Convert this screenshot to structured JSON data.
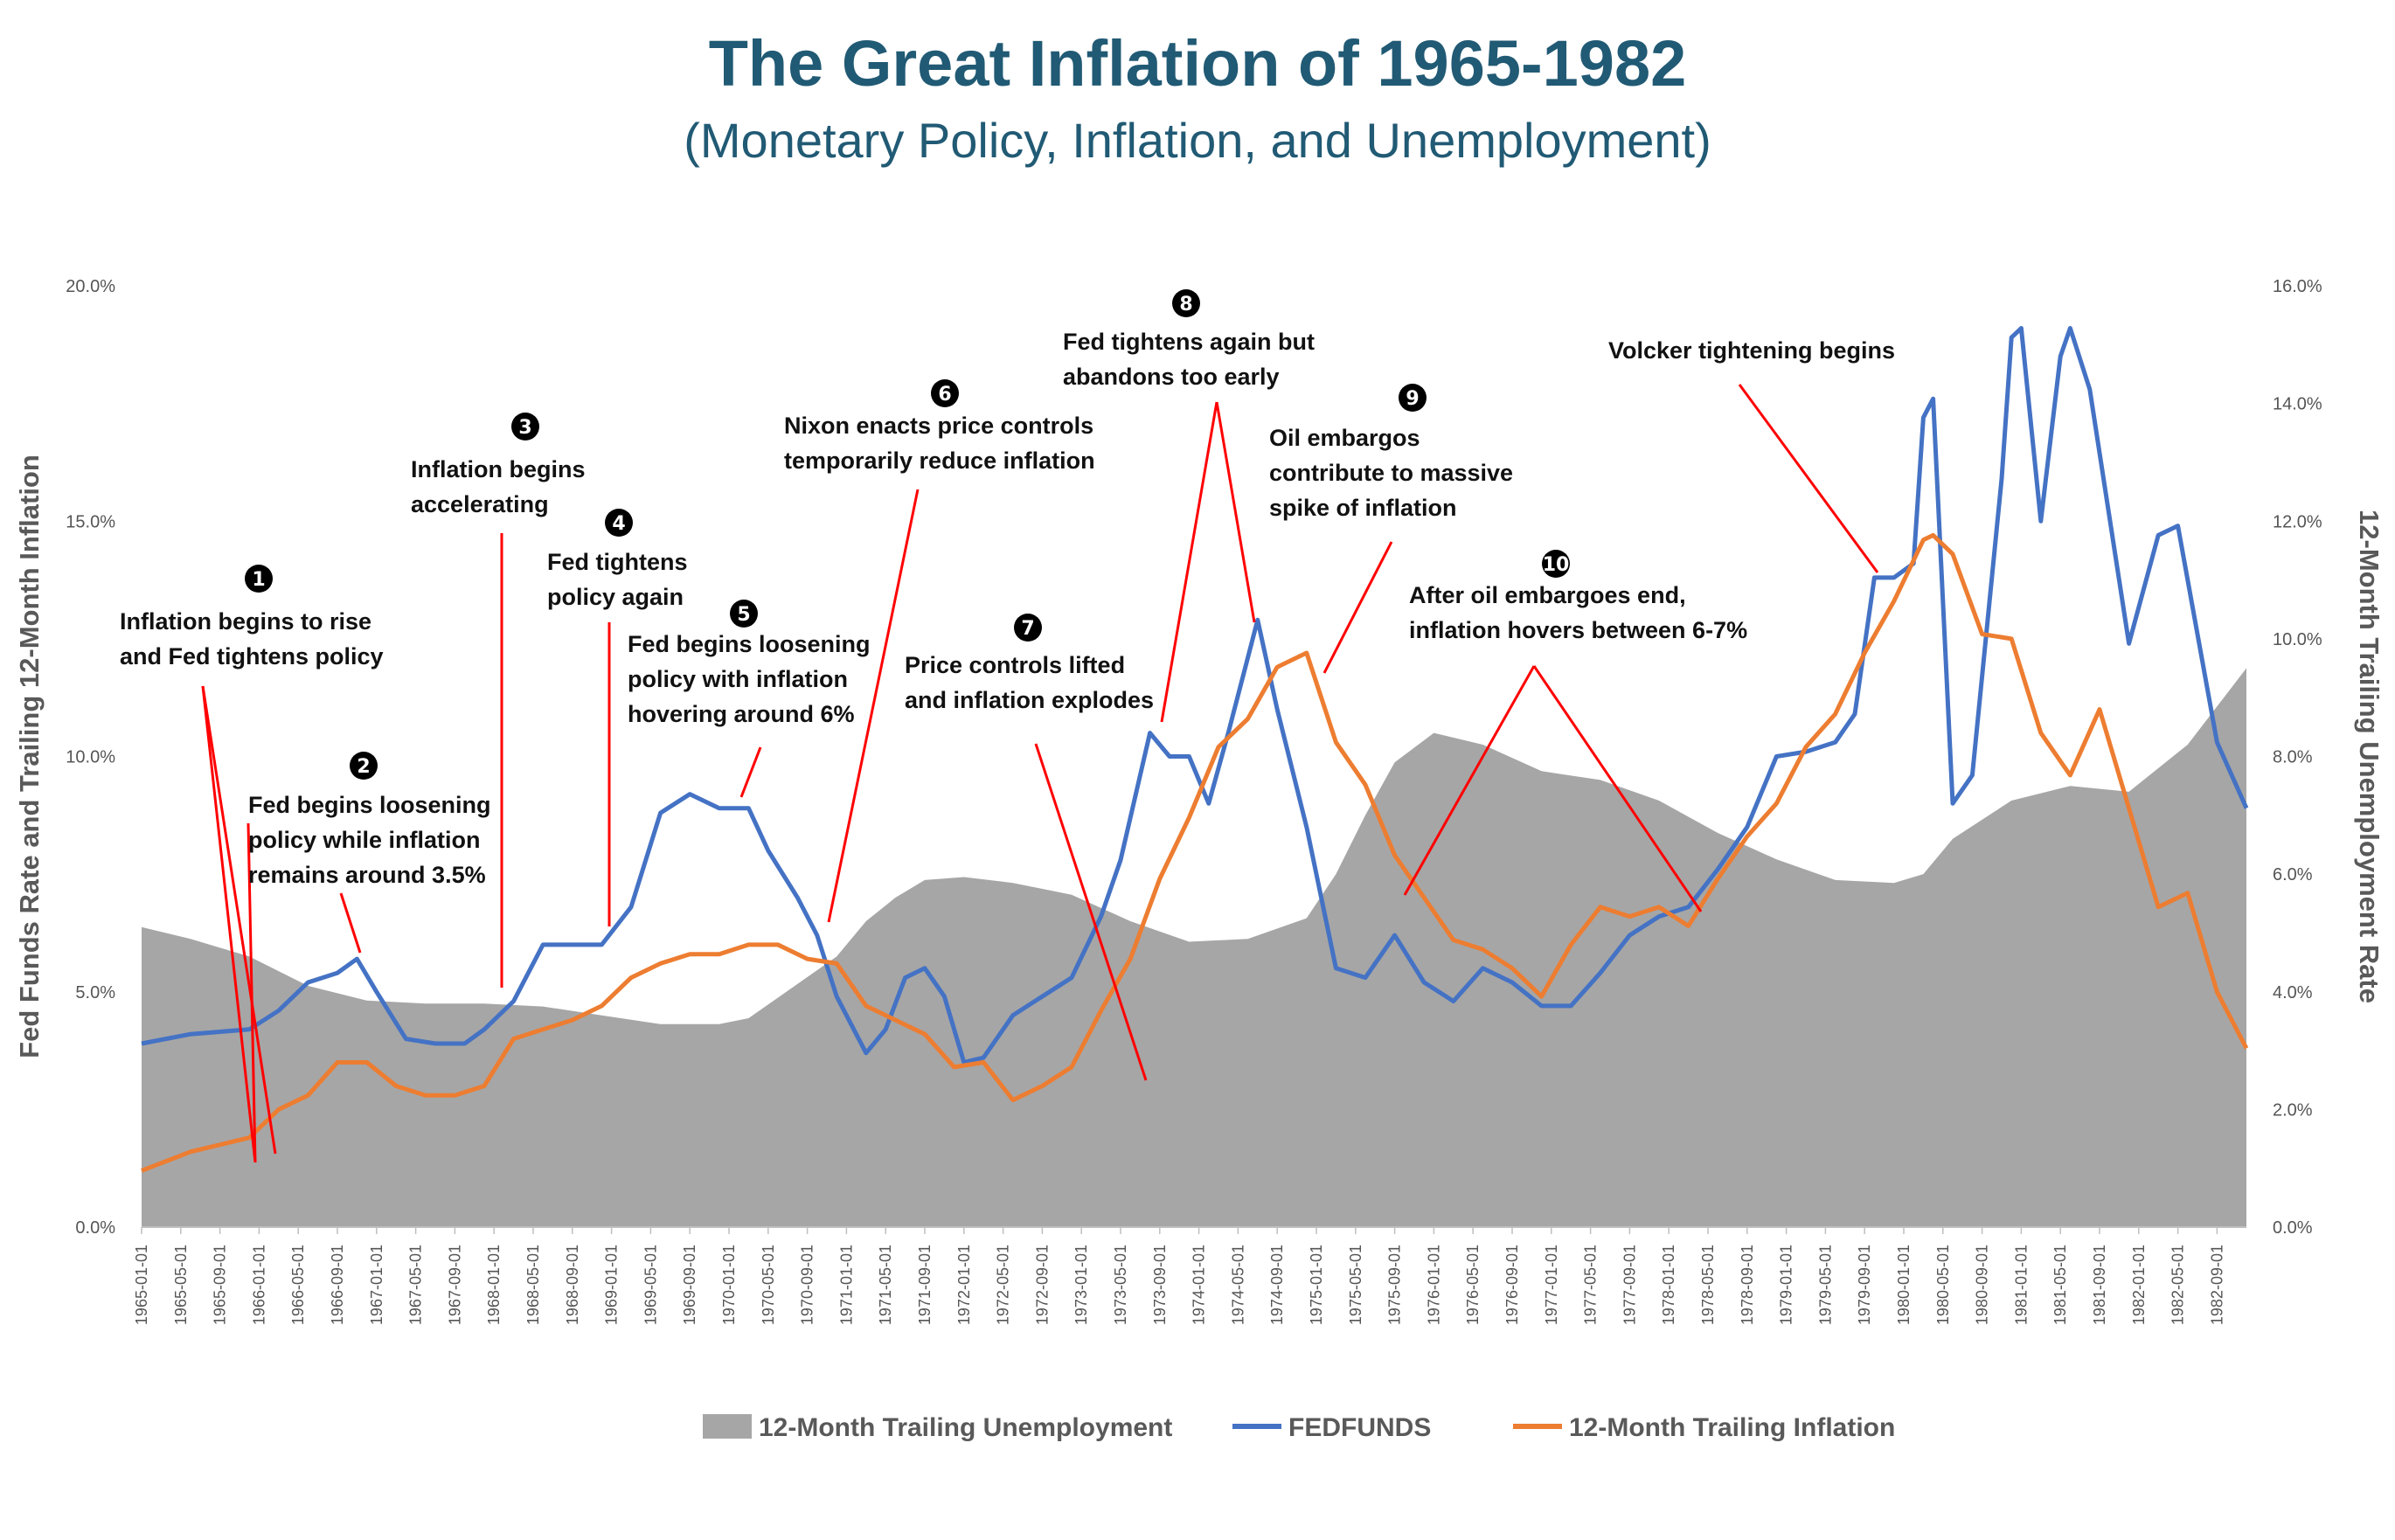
{
  "title": "The Great Inflation of 1965-1982",
  "subtitle": "(Monetary Policy, Inflation, and Unemployment)",
  "colors": {
    "title": "#215a74",
    "unemployment": "#a6a6a6",
    "fedfunds": "#4472c4",
    "inflation": "#ed7d31",
    "annotation_line": "#ff0000"
  },
  "chart_data": {
    "type": "line",
    "ylabel": "Fed Funds Rate and Trailing 12-Month Inflation",
    "y2label": "12-Month Trailing Unemployment Rate",
    "ylim": [
      0,
      20
    ],
    "y2lim": [
      0,
      16
    ],
    "yticks": [
      "0.0%",
      "5.0%",
      "10.0%",
      "15.0%",
      "20.0%"
    ],
    "y2ticks": [
      "0.0%",
      "2.0%",
      "4.0%",
      "6.0%",
      "8.0%",
      "10.0%",
      "12.0%",
      "14.0%",
      "16.0%"
    ],
    "xticks": [
      "1965-01-01",
      "1965-05-01",
      "1965-09-01",
      "1966-01-01",
      "1966-05-01",
      "1966-09-01",
      "1967-01-01",
      "1967-05-01",
      "1967-09-01",
      "1968-01-01",
      "1968-05-01",
      "1968-09-01",
      "1969-01-01",
      "1969-05-01",
      "1969-09-01",
      "1970-01-01",
      "1970-05-01",
      "1970-09-01",
      "1971-01-01",
      "1971-05-01",
      "1971-09-01",
      "1972-01-01",
      "1972-05-01",
      "1972-09-01",
      "1973-01-01",
      "1973-05-01",
      "1973-09-01",
      "1974-01-01",
      "1974-05-01",
      "1974-09-01",
      "1975-01-01",
      "1975-05-01",
      "1975-09-01",
      "1976-01-01",
      "1976-05-01",
      "1976-09-01",
      "1977-01-01",
      "1977-05-01",
      "1977-09-01",
      "1978-01-01",
      "1978-05-01",
      "1978-09-01",
      "1979-01-01",
      "1979-05-01",
      "1979-09-01",
      "1980-01-01",
      "1980-05-01",
      "1980-09-01",
      "1981-01-01",
      "1981-05-01",
      "1981-09-01",
      "1982-01-01",
      "1982-05-01",
      "1982-09-01"
    ],
    "x_start": "1965-01",
    "x_end": "1982-12",
    "legend_position": "bottom",
    "grid": false,
    "series": [
      {
        "name": "12-Month Trailing Unemployment",
        "kind": "area",
        "axis": "right",
        "points": [
          [
            "1965-01",
            5.1
          ],
          [
            "1965-06",
            4.9
          ],
          [
            "1965-12",
            4.6
          ],
          [
            "1966-06",
            4.1
          ],
          [
            "1966-12",
            3.85
          ],
          [
            "1967-06",
            3.8
          ],
          [
            "1967-12",
            3.8
          ],
          [
            "1968-06",
            3.75
          ],
          [
            "1968-12",
            3.6
          ],
          [
            "1969-06",
            3.45
          ],
          [
            "1969-12",
            3.45
          ],
          [
            "1970-03",
            3.55
          ],
          [
            "1970-06",
            3.9
          ],
          [
            "1970-12",
            4.6
          ],
          [
            "1971-03",
            5.2
          ],
          [
            "1971-06",
            5.6
          ],
          [
            "1971-09",
            5.9
          ],
          [
            "1972-01",
            5.95
          ],
          [
            "1972-06",
            5.85
          ],
          [
            "1972-12",
            5.65
          ],
          [
            "1973-06",
            5.2
          ],
          [
            "1973-12",
            4.85
          ],
          [
            "1974-06",
            4.9
          ],
          [
            "1974-12",
            5.25
          ],
          [
            "1975-03",
            6.0
          ],
          [
            "1975-06",
            7.0
          ],
          [
            "1975-09",
            7.9
          ],
          [
            "1976-01",
            8.4
          ],
          [
            "1976-06",
            8.2
          ],
          [
            "1976-12",
            7.75
          ],
          [
            "1977-06",
            7.6
          ],
          [
            "1977-12",
            7.25
          ],
          [
            "1978-06",
            6.7
          ],
          [
            "1978-12",
            6.25
          ],
          [
            "1979-06",
            5.9
          ],
          [
            "1979-12",
            5.85
          ],
          [
            "1980-03",
            6.0
          ],
          [
            "1980-06",
            6.6
          ],
          [
            "1980-12",
            7.25
          ],
          [
            "1981-06",
            7.5
          ],
          [
            "1981-12",
            7.4
          ],
          [
            "1982-06",
            8.2
          ],
          [
            "1982-12",
            9.5
          ]
        ]
      },
      {
        "name": "FEDFUNDS",
        "kind": "line",
        "axis": "left",
        "points": [
          [
            "1965-01",
            3.9
          ],
          [
            "1965-06",
            4.1
          ],
          [
            "1965-12",
            4.2
          ],
          [
            "1966-03",
            4.6
          ],
          [
            "1966-06",
            5.2
          ],
          [
            "1966-09",
            5.4
          ],
          [
            "1966-11",
            5.7
          ],
          [
            "1967-01",
            5.0
          ],
          [
            "1967-04",
            4.0
          ],
          [
            "1967-07",
            3.9
          ],
          [
            "1967-10",
            3.9
          ],
          [
            "1967-12",
            4.2
          ],
          [
            "1968-03",
            4.8
          ],
          [
            "1968-06",
            6.0
          ],
          [
            "1968-09",
            6.0
          ],
          [
            "1968-12",
            6.0
          ],
          [
            "1969-03",
            6.8
          ],
          [
            "1969-06",
            8.8
          ],
          [
            "1969-09",
            9.2
          ],
          [
            "1969-12",
            8.9
          ],
          [
            "1970-03",
            8.9
          ],
          [
            "1970-05",
            8.0
          ],
          [
            "1970-08",
            7.0
          ],
          [
            "1970-10",
            6.2
          ],
          [
            "1970-12",
            4.9
          ],
          [
            "1971-03",
            3.7
          ],
          [
            "1971-05",
            4.2
          ],
          [
            "1971-07",
            5.3
          ],
          [
            "1971-09",
            5.5
          ],
          [
            "1971-11",
            4.9
          ],
          [
            "1972-01",
            3.5
          ],
          [
            "1972-03",
            3.6
          ],
          [
            "1972-06",
            4.5
          ],
          [
            "1972-09",
            4.9
          ],
          [
            "1972-12",
            5.3
          ],
          [
            "1973-03",
            6.6
          ],
          [
            "1973-05",
            7.8
          ],
          [
            "1973-08",
            10.5
          ],
          [
            "1973-10",
            10.0
          ],
          [
            "1973-12",
            10.0
          ],
          [
            "1974-02",
            9.0
          ],
          [
            "1974-04",
            10.5
          ],
          [
            "1974-07",
            12.9
          ],
          [
            "1974-09",
            11.0
          ],
          [
            "1974-12",
            8.5
          ],
          [
            "1975-03",
            5.5
          ],
          [
            "1975-06",
            5.3
          ],
          [
            "1975-09",
            6.2
          ],
          [
            "1975-12",
            5.2
          ],
          [
            "1976-03",
            4.8
          ],
          [
            "1976-06",
            5.5
          ],
          [
            "1976-09",
            5.2
          ],
          [
            "1976-12",
            4.7
          ],
          [
            "1977-03",
            4.7
          ],
          [
            "1977-06",
            5.4
          ],
          [
            "1977-09",
            6.2
          ],
          [
            "1977-12",
            6.6
          ],
          [
            "1978-03",
            6.8
          ],
          [
            "1978-06",
            7.6
          ],
          [
            "1978-09",
            8.5
          ],
          [
            "1978-12",
            10.0
          ],
          [
            "1979-03",
            10.1
          ],
          [
            "1979-06",
            10.3
          ],
          [
            "1979-08",
            10.9
          ],
          [
            "1979-10",
            13.8
          ],
          [
            "1979-12",
            13.8
          ],
          [
            "1980-02",
            14.1
          ],
          [
            "1980-03",
            17.2
          ],
          [
            "1980-04",
            17.6
          ],
          [
            "1980-06",
            9.0
          ],
          [
            "1980-08",
            9.6
          ],
          [
            "1980-11",
            15.9
          ],
          [
            "1980-12",
            18.9
          ],
          [
            "1981-01",
            19.1
          ],
          [
            "1981-03",
            15.0
          ],
          [
            "1981-05",
            18.5
          ],
          [
            "1981-06",
            19.1
          ],
          [
            "1981-08",
            17.8
          ],
          [
            "1981-10",
            15.1
          ],
          [
            "1981-12",
            12.4
          ],
          [
            "1982-03",
            14.7
          ],
          [
            "1982-05",
            14.9
          ],
          [
            "1982-07",
            12.6
          ],
          [
            "1982-09",
            10.3
          ],
          [
            "1982-12",
            8.9
          ]
        ]
      },
      {
        "name": "12-Month Trailing Inflation",
        "kind": "line",
        "axis": "left",
        "points": [
          [
            "1965-01",
            1.2
          ],
          [
            "1965-06",
            1.6
          ],
          [
            "1965-12",
            1.9
          ],
          [
            "1966-03",
            2.5
          ],
          [
            "1966-06",
            2.8
          ],
          [
            "1966-09",
            3.5
          ],
          [
            "1966-12",
            3.5
          ],
          [
            "1967-03",
            3.0
          ],
          [
            "1967-06",
            2.8
          ],
          [
            "1967-09",
            2.8
          ],
          [
            "1967-12",
            3.0
          ],
          [
            "1968-03",
            4.0
          ],
          [
            "1968-06",
            4.2
          ],
          [
            "1968-09",
            4.4
          ],
          [
            "1968-12",
            4.7
          ],
          [
            "1969-03",
            5.3
          ],
          [
            "1969-06",
            5.6
          ],
          [
            "1969-09",
            5.8
          ],
          [
            "1969-12",
            5.8
          ],
          [
            "1970-03",
            6.0
          ],
          [
            "1970-06",
            6.0
          ],
          [
            "1970-09",
            5.7
          ],
          [
            "1970-12",
            5.6
          ],
          [
            "1971-03",
            4.7
          ],
          [
            "1971-06",
            4.4
          ],
          [
            "1971-09",
            4.1
          ],
          [
            "1971-12",
            3.4
          ],
          [
            "1972-03",
            3.5
          ],
          [
            "1972-06",
            2.7
          ],
          [
            "1972-09",
            3.0
          ],
          [
            "1972-12",
            3.4
          ],
          [
            "1973-03",
            4.6
          ],
          [
            "1973-06",
            5.7
          ],
          [
            "1973-09",
            7.4
          ],
          [
            "1973-12",
            8.7
          ],
          [
            "1974-03",
            10.2
          ],
          [
            "1974-06",
            10.8
          ],
          [
            "1974-09",
            11.9
          ],
          [
            "1974-12",
            12.2
          ],
          [
            "1975-03",
            10.3
          ],
          [
            "1975-06",
            9.4
          ],
          [
            "1975-09",
            7.9
          ],
          [
            "1975-12",
            7.0
          ],
          [
            "1976-03",
            6.1
          ],
          [
            "1976-06",
            5.9
          ],
          [
            "1976-09",
            5.5
          ],
          [
            "1976-12",
            4.9
          ],
          [
            "1977-03",
            6.0
          ],
          [
            "1977-06",
            6.8
          ],
          [
            "1977-09",
            6.6
          ],
          [
            "1977-12",
            6.8
          ],
          [
            "1978-03",
            6.4
          ],
          [
            "1978-06",
            7.4
          ],
          [
            "1978-09",
            8.3
          ],
          [
            "1978-12",
            9.0
          ],
          [
            "1979-03",
            10.2
          ],
          [
            "1979-06",
            10.9
          ],
          [
            "1979-09",
            12.2
          ],
          [
            "1979-12",
            13.3
          ],
          [
            "1980-03",
            14.6
          ],
          [
            "1980-04",
            14.7
          ],
          [
            "1980-06",
            14.3
          ],
          [
            "1980-09",
            12.6
          ],
          [
            "1980-12",
            12.5
          ],
          [
            "1981-03",
            10.5
          ],
          [
            "1981-06",
            9.6
          ],
          [
            "1981-09",
            11.0
          ],
          [
            "1981-12",
            8.9
          ],
          [
            "1982-03",
            6.8
          ],
          [
            "1982-06",
            7.1
          ],
          [
            "1982-09",
            5.0
          ],
          [
            "1982-12",
            3.8
          ]
        ]
      }
    ],
    "annotations": [
      {
        "num": "1",
        "lines": [
          "Inflation begins to rise",
          "and Fed tightens policy"
        ]
      },
      {
        "num": "2",
        "lines": [
          "Fed begins loosening",
          "policy while inflation",
          "remains around 3.5%"
        ]
      },
      {
        "num": "3",
        "lines": [
          "Inflation begins",
          "accelerating"
        ]
      },
      {
        "num": "4",
        "lines": [
          "Fed tightens",
          "policy again"
        ]
      },
      {
        "num": "5",
        "lines": [
          "Fed begins loosening",
          "policy with inflation",
          "hovering around 6%"
        ]
      },
      {
        "num": "6",
        "lines": [
          "Nixon enacts price controls",
          "temporarily reduce inflation"
        ]
      },
      {
        "num": "7",
        "lines": [
          "Price controls lifted",
          "and inflation explodes"
        ]
      },
      {
        "num": "8",
        "lines": [
          "Fed tightens again but",
          "abandons too early"
        ]
      },
      {
        "num": "9",
        "lines": [
          "Oil embargos",
          "contribute to massive",
          "spike of inflation"
        ]
      },
      {
        "num": "10",
        "lines": [
          "After oil embargoes end,",
          "inflation hovers between 6-7%"
        ]
      },
      {
        "num": "",
        "lines": [
          "Volcker tightening begins"
        ]
      }
    ]
  }
}
